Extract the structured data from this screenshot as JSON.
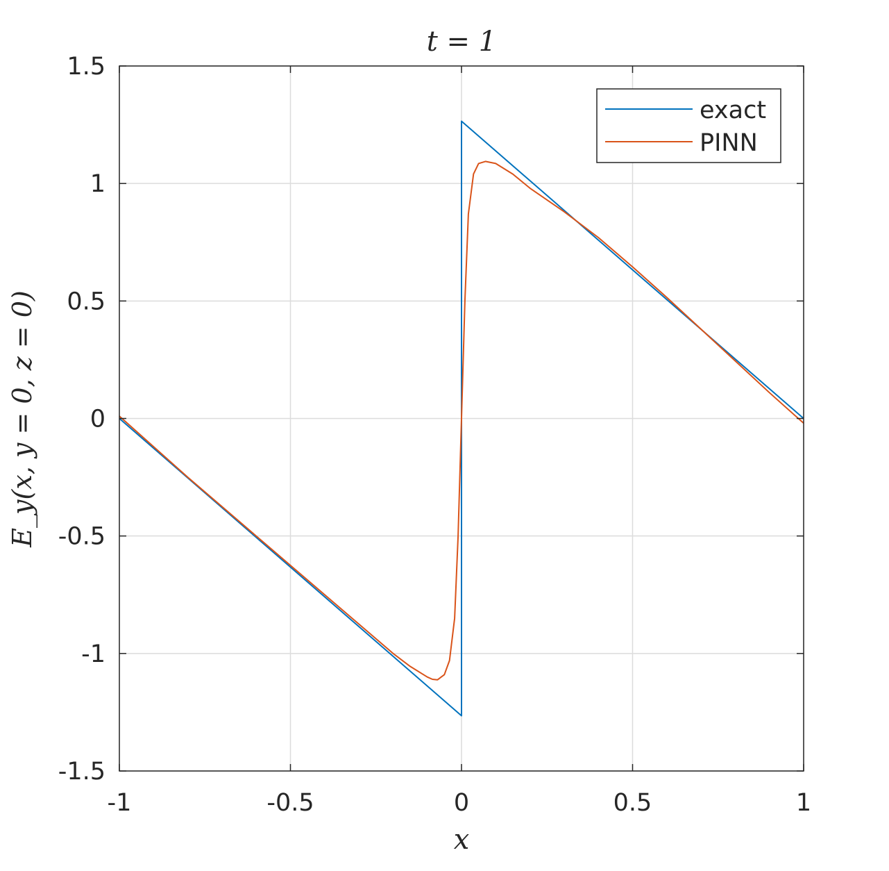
{
  "chart_data": {
    "type": "line",
    "title": "t = 1",
    "xlabel": "x",
    "ylabel": "E_y(x, y = 0, z = 0)",
    "xlim": [
      -1,
      1
    ],
    "ylim": [
      -1.5,
      1.5
    ],
    "xticks": [
      "-1",
      "-0.5",
      "0",
      "0.5",
      "1"
    ],
    "xtick_values": [
      -1,
      -0.5,
      0,
      0.5,
      1
    ],
    "yticks": [
      "-1.5",
      "-1",
      "-0.5",
      "0",
      "0.5",
      "1",
      "1.5"
    ],
    "ytick_values": [
      -1.5,
      -1,
      -0.5,
      0,
      0.5,
      1,
      1.5
    ],
    "grid": true,
    "legend_position": "top-right",
    "series": [
      {
        "name": "exact",
        "color": "#0072bd",
        "x": [
          -1,
          0,
          0,
          1
        ],
        "y": [
          0,
          -1.265,
          1.265,
          0
        ]
      },
      {
        "name": "PINN",
        "color": "#d95319",
        "x": [
          -1,
          -0.9,
          -0.8,
          -0.7,
          -0.6,
          -0.5,
          -0.4,
          -0.3,
          -0.2,
          -0.15,
          -0.1,
          -0.085,
          -0.07,
          -0.05,
          -0.035,
          -0.02,
          -0.01,
          0,
          0.01,
          0.02,
          0.035,
          0.05,
          0.07,
          0.1,
          0.15,
          0.2,
          0.3,
          0.4,
          0.5,
          0.6,
          0.7,
          0.8,
          0.9,
          1
        ],
        "y": [
          0.01,
          -0.12,
          -0.25,
          -0.375,
          -0.5,
          -0.625,
          -0.75,
          -0.875,
          -1.0,
          -1.055,
          -1.1,
          -1.11,
          -1.112,
          -1.09,
          -1.03,
          -0.85,
          -0.5,
          0.0,
          0.5,
          0.87,
          1.04,
          1.085,
          1.094,
          1.085,
          1.04,
          0.98,
          0.88,
          0.77,
          0.645,
          0.515,
          0.38,
          0.245,
          0.11,
          -0.02
        ]
      }
    ]
  }
}
